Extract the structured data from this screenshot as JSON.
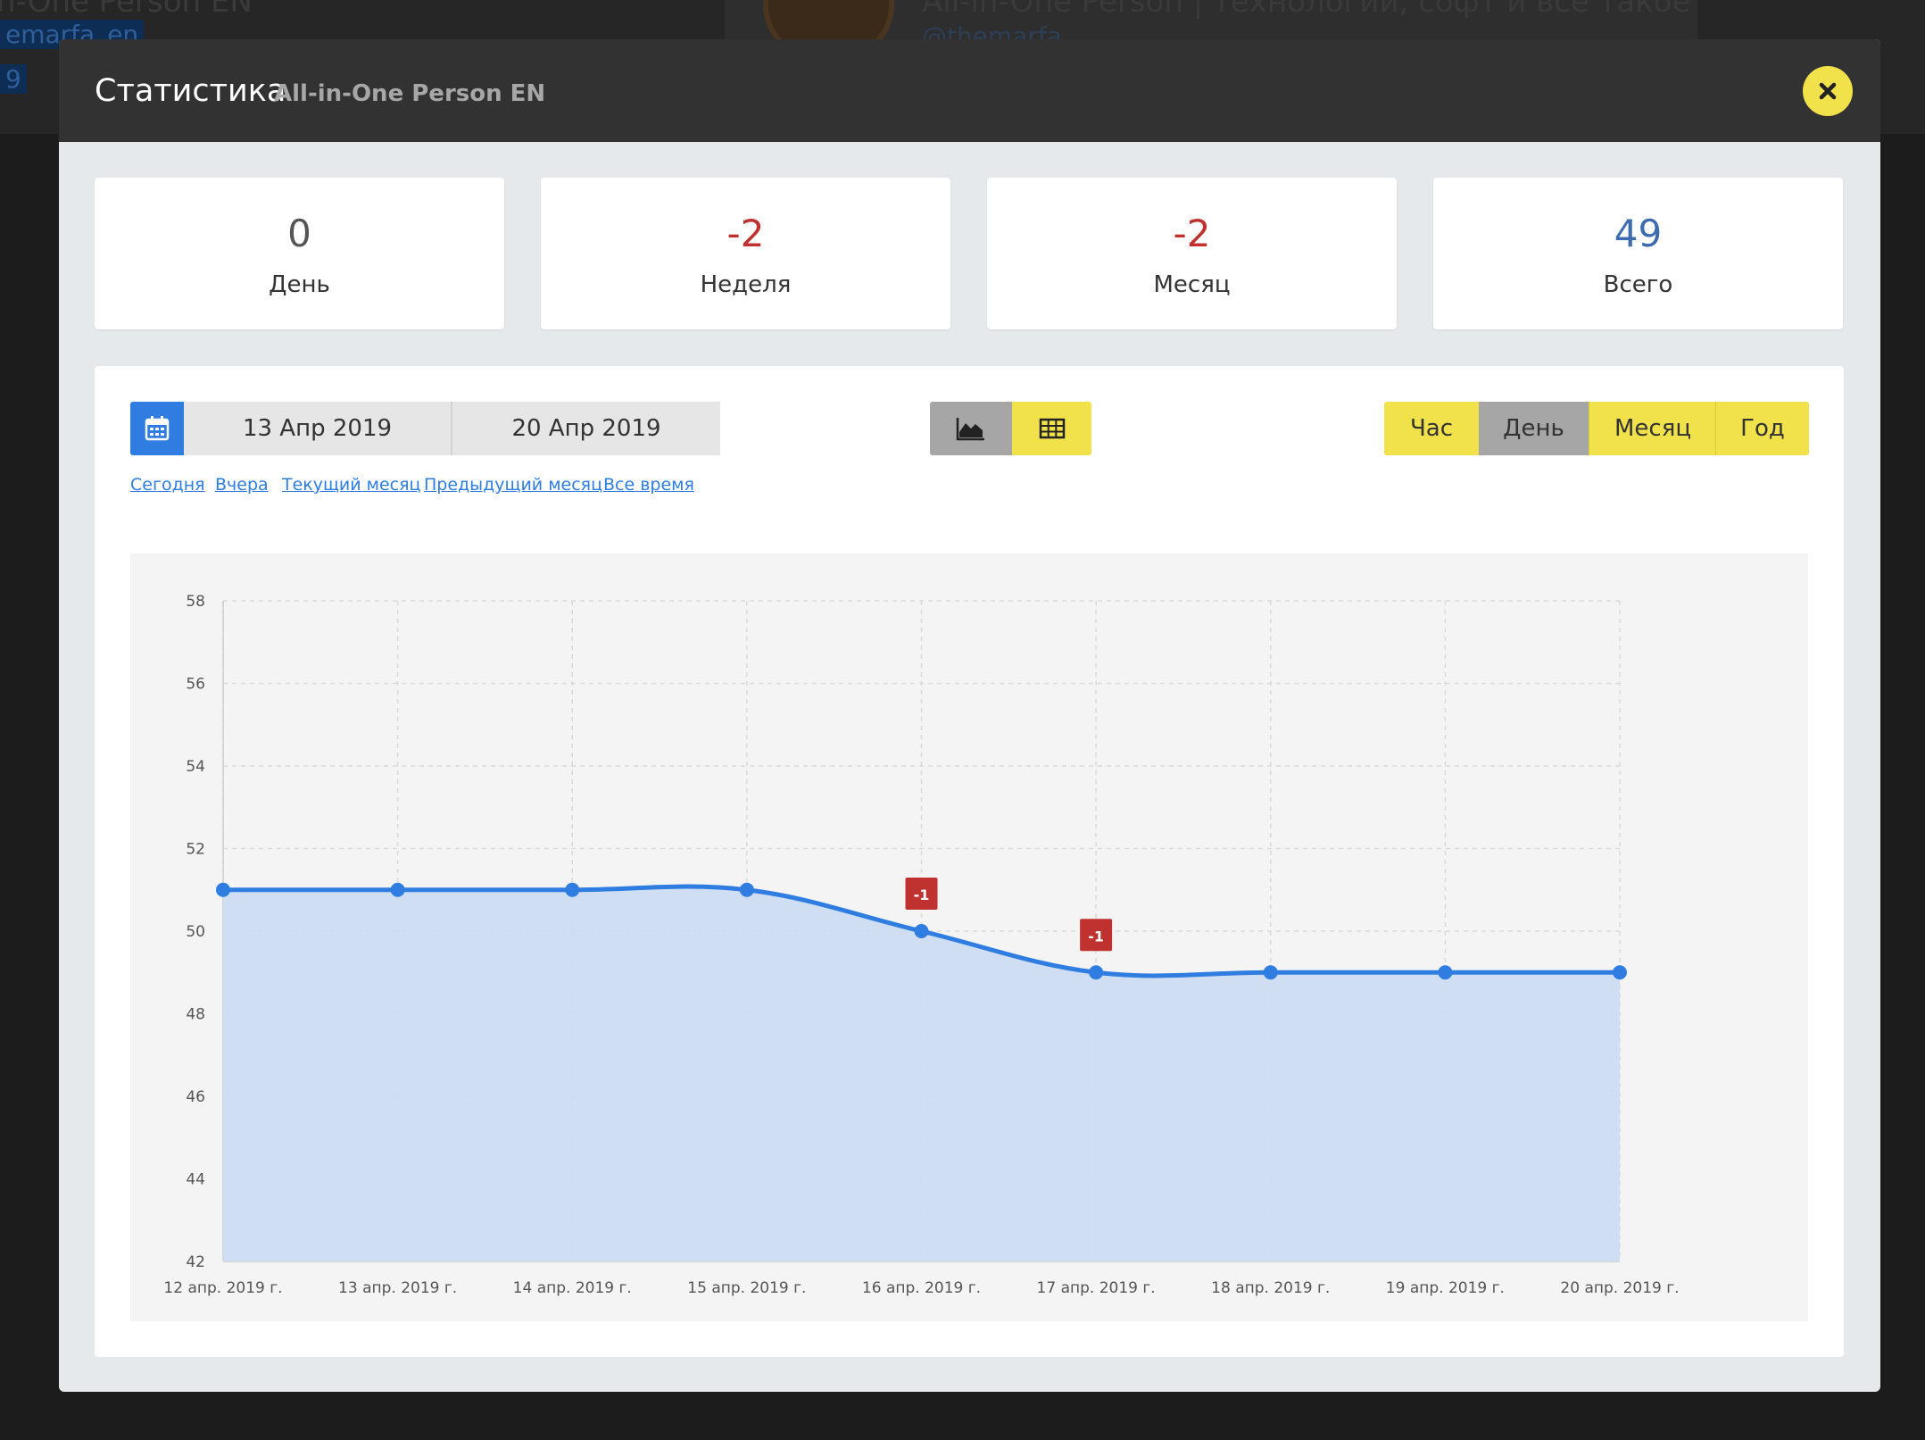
{
  "background": {
    "channel_name_partial": "n-One Person EN",
    "handle_partial": "emarfa_en",
    "count_partial": "9",
    "channel_title_partial": "All-in-One Person | технологии, софт и все такое",
    "channel_handle_partial": "@themarfa"
  },
  "modal": {
    "title": "Статистика",
    "subtitle": "All-in-One Person EN",
    "close_icon": "close-icon"
  },
  "stats": [
    {
      "value": "0",
      "label": "День",
      "color": "#555555"
    },
    {
      "value": "-2",
      "label": "Неделя",
      "color": "#c0322f"
    },
    {
      "value": "-2",
      "label": "Месяц",
      "color": "#c0322f"
    },
    {
      "value": "49",
      "label": "Всего",
      "color": "#3c6bb0"
    }
  ],
  "date_range": {
    "icon": "calendar-icon",
    "from": "13 Апр 2019",
    "to": "20 Апр 2019"
  },
  "quick_links": [
    "Сегодня",
    "Вчера",
    "Текущий месяц",
    "Предыдущий месяц",
    "Все время"
  ],
  "view_toggle": {
    "chart_icon": "area-chart-icon",
    "table_icon": "table-icon",
    "active": "chart"
  },
  "periods": {
    "items": [
      "Час",
      "День",
      "Месяц",
      "Год"
    ],
    "active": "День"
  },
  "colors": {
    "accent_yellow": "#f1e24b",
    "active_gray": "#a6a6a6",
    "line_blue": "#2f7de1",
    "fill_blue": "#cddcf2",
    "badge_red": "#c0322f",
    "link_blue": "#2f7de1"
  },
  "chart_data": {
    "type": "area",
    "x": [
      "12 апр. 2019 г.",
      "13 апр. 2019 г.",
      "14 апр. 2019 г.",
      "15 апр. 2019 г.",
      "16 апр. 2019 г.",
      "17 апр. 2019 г.",
      "18 апр. 2019 г.",
      "19 апр. 2019 г.",
      "20 апр. 2019 г."
    ],
    "series": [
      {
        "values": [
          51,
          51,
          51,
          51,
          50,
          49,
          49,
          49,
          49
        ]
      }
    ],
    "annotations": [
      {
        "x_index": 4,
        "label": "-1"
      },
      {
        "x_index": 5,
        "label": "-1"
      }
    ],
    "ylim": [
      42,
      58
    ],
    "yticks": [
      42,
      44,
      46,
      48,
      50,
      52,
      54,
      56,
      58
    ],
    "grid": true,
    "title": "",
    "xlabel": "",
    "ylabel": ""
  }
}
